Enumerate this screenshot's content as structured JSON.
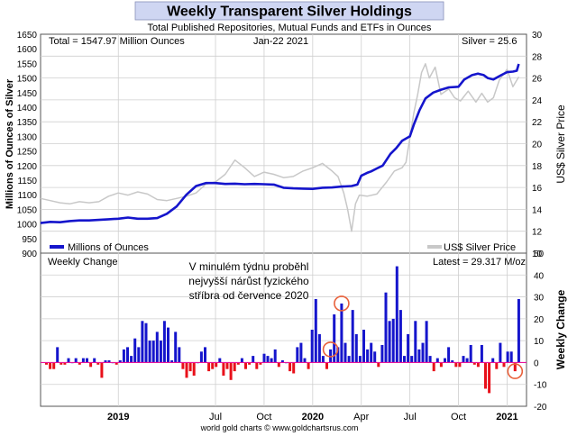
{
  "chart_data": [
    {
      "type": "line",
      "title": "Weekly Transparent Silver Holdings",
      "subtitle": "Total Published Repositories, Mutual Funds and ETFs in Ounces",
      "total_label": "Total = 1547.97 Million Ounces",
      "date_label": "Jan-22  2021",
      "silver_label": "Silver = 25.6",
      "ylabel": "Millions of Ounces of Silver",
      "ylabel_right": "US$ Silver Price",
      "yticks": [
        "900",
        "950",
        "1000",
        "1050",
        "1100",
        "1150",
        "1200",
        "1250",
        "1300",
        "1350",
        "1400",
        "1450",
        "1500",
        "1550",
        "1600",
        "1650"
      ],
      "yticks_right": [
        "10",
        "12",
        "14",
        "16",
        "18",
        "20",
        "22",
        "24",
        "26",
        "28",
        "30"
      ],
      "ylim": [
        900,
        1650
      ],
      "ylim_right": [
        10,
        30
      ],
      "xlim": [
        2018.6,
        2021.1
      ],
      "x_ticks": [
        {
          "label": "2019",
          "x": 2019.0,
          "bold": true
        },
        {
          "label": "Jul",
          "x": 2019.5,
          "bold": false
        },
        {
          "label": "Oct",
          "x": 2019.75,
          "bold": false
        },
        {
          "label": "2020",
          "x": 2020.0,
          "bold": true
        },
        {
          "label": "Apr",
          "x": 2020.25,
          "bold": false
        },
        {
          "label": "Jul",
          "x": 2020.5,
          "bold": false
        },
        {
          "label": "Oct",
          "x": 2020.75,
          "bold": false
        },
        {
          "label": "2021",
          "x": 2021.0,
          "bold": true
        }
      ],
      "legend": [
        "Millions of Ounces",
        "US$ Silver Price"
      ],
      "series": [
        {
          "name": "Millions of Ounces",
          "color": "#1515cc",
          "x": [
            2018.6,
            2018.65,
            2018.7,
            2018.75,
            2018.8,
            2018.85,
            2018.9,
            2018.95,
            2019.0,
            2019.05,
            2019.1,
            2019.15,
            2019.2,
            2019.25,
            2019.3,
            2019.35,
            2019.4,
            2019.45,
            2019.5,
            2019.55,
            2019.6,
            2019.65,
            2019.7,
            2019.75,
            2019.8,
            2019.85,
            2019.9,
            2019.95,
            2020.0,
            2020.05,
            2020.1,
            2020.15,
            2020.2,
            2020.23,
            2020.25,
            2020.28,
            2020.3,
            2020.33,
            2020.36,
            2020.4,
            2020.43,
            2020.46,
            2020.5,
            2020.52,
            2020.55,
            2020.58,
            2020.62,
            2020.66,
            2020.7,
            2020.75,
            2020.78,
            2020.82,
            2020.85,
            2020.88,
            2020.9,
            2020.93,
            2020.97,
            2021.0,
            2021.03,
            2021.05,
            2021.06
          ],
          "values": [
            1003,
            1007,
            1006,
            1010,
            1012,
            1012,
            1014,
            1016,
            1018,
            1022,
            1018,
            1018,
            1020,
            1035,
            1060,
            1100,
            1130,
            1140,
            1140,
            1137,
            1138,
            1136,
            1137,
            1136,
            1135,
            1124,
            1122,
            1121,
            1120,
            1124,
            1125,
            1128,
            1130,
            1135,
            1165,
            1175,
            1180,
            1190,
            1200,
            1240,
            1260,
            1285,
            1300,
            1340,
            1390,
            1430,
            1450,
            1460,
            1468,
            1470,
            1495,
            1510,
            1515,
            1510,
            1500,
            1495,
            1510,
            1520,
            1522,
            1525,
            1548
          ]
        },
        {
          "name": "US$ Silver Price",
          "color": "#c8c8c8",
          "axis": "right",
          "x": [
            2018.6,
            2018.65,
            2018.7,
            2018.75,
            2018.8,
            2018.85,
            2018.9,
            2018.95,
            2019.0,
            2019.05,
            2019.1,
            2019.15,
            2019.2,
            2019.25,
            2019.3,
            2019.35,
            2019.4,
            2019.45,
            2019.5,
            2019.55,
            2019.6,
            2019.65,
            2019.7,
            2019.75,
            2019.8,
            2019.85,
            2019.9,
            2019.95,
            2020.0,
            2020.05,
            2020.1,
            2020.13,
            2020.16,
            2020.18,
            2020.2,
            2020.22,
            2020.24,
            2020.28,
            2020.33,
            2020.38,
            2020.42,
            2020.46,
            2020.48,
            2020.5,
            2020.52,
            2020.54,
            2020.56,
            2020.58,
            2020.6,
            2020.63,
            2020.66,
            2020.7,
            2020.73,
            2020.76,
            2020.8,
            2020.84,
            2020.87,
            2020.9,
            2020.93,
            2020.96,
            2021.0,
            2021.03,
            2021.06
          ],
          "values": [
            15.0,
            14.8,
            14.6,
            14.5,
            14.7,
            14.6,
            14.7,
            15.2,
            15.5,
            15.3,
            15.6,
            15.4,
            14.9,
            14.8,
            15.0,
            15.2,
            15.5,
            16.3,
            16.5,
            17.2,
            18.5,
            17.8,
            17.0,
            17.4,
            17.2,
            16.9,
            17.0,
            17.5,
            17.8,
            18.2,
            17.5,
            17.0,
            15.5,
            14.0,
            12.0,
            14.5,
            15.3,
            15.2,
            15.4,
            16.5,
            17.5,
            17.8,
            18.3,
            20.5,
            22.8,
            24.5,
            26.5,
            27.3,
            26.0,
            27.0,
            24.5,
            25.0,
            24.2,
            23.9,
            24.8,
            23.8,
            24.6,
            23.8,
            24.2,
            25.8,
            26.8,
            25.2,
            26.1
          ]
        }
      ]
    },
    {
      "type": "bar",
      "title": "Weekly Change",
      "latest_label": "Latest = 29.317 M/oz",
      "ylabel_right": "Weekly Change",
      "ylim": [
        -20,
        50
      ],
      "yticks": [
        "-20",
        "-10",
        "0",
        "10",
        "20",
        "30",
        "40",
        "50"
      ],
      "positive_color": "#1515cc",
      "negative_color": "#e8101a",
      "annotation": [
        "V minulém týdnu proběhl",
        "nejvyšší nárůst fyzického",
        "stříbra od července 2020"
      ],
      "highlighted_weeks": [
        77,
        80,
        127
      ],
      "values": [
        -1,
        -3,
        -3,
        7,
        -1,
        -1,
        2,
        0,
        2,
        -1,
        2,
        2,
        -2,
        2,
        -1,
        -7,
        1,
        1,
        0,
        -1,
        1,
        6,
        7,
        3,
        11,
        7,
        19,
        18,
        10,
        10,
        14,
        10,
        19,
        16,
        1,
        14,
        7,
        -3,
        -7,
        -4,
        -6,
        0,
        5,
        7,
        -4,
        -3,
        -2,
        2,
        -6,
        -3,
        -8,
        -4,
        -1,
        2,
        -3,
        -1,
        3,
        -3,
        -1,
        4,
        3,
        2,
        6,
        -2,
        1,
        0,
        -4,
        -5,
        7,
        9,
        2,
        -3,
        15,
        29,
        13,
        3,
        -3,
        6,
        22,
        7,
        27,
        9,
        3,
        24,
        13,
        3,
        15,
        6,
        9,
        5,
        -2,
        8,
        32,
        19,
        20,
        44,
        24,
        3,
        13,
        3,
        19,
        6,
        9,
        19,
        3,
        -4,
        2,
        -2,
        2,
        7,
        1,
        -2,
        -2,
        3,
        2,
        8,
        -1,
        -2,
        8,
        -12,
        -14,
        2,
        -3,
        9,
        -2,
        5,
        5,
        -4,
        29
      ]
    }
  ],
  "footer": "world gold charts © www.goldchartsrus.com"
}
